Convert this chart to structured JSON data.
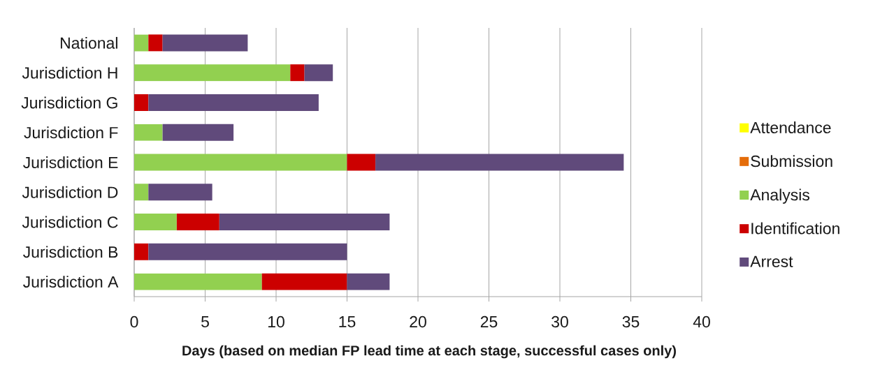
{
  "chart_data": {
    "type": "bar",
    "orientation": "horizontal",
    "stacked": true,
    "categories": [
      "National",
      "Jurisdiction H",
      "Jurisdiction G",
      "Jurisdiction F",
      "Jurisdiction E",
      "Jurisdiction D",
      "Jurisdiction C",
      "Jurisdiction B",
      "Jurisdiction A"
    ],
    "series": [
      {
        "name": "Attendance",
        "color": "#ffff00",
        "values": [
          0,
          0,
          0,
          0,
          0,
          0,
          0,
          0,
          0
        ]
      },
      {
        "name": "Submission",
        "color": "#e46c0a",
        "values": [
          0,
          0,
          0,
          0,
          0,
          0,
          0,
          0,
          0
        ]
      },
      {
        "name": "Analysis",
        "color": "#92d050",
        "values": [
          1,
          11,
          0,
          2,
          15,
          1,
          3,
          0,
          9
        ]
      },
      {
        "name": "Identification",
        "color": "#cc0000",
        "values": [
          1,
          1,
          1,
          0,
          2,
          0,
          3,
          1,
          6
        ]
      },
      {
        "name": "Arrest",
        "color": "#604a7b",
        "values": [
          6,
          2,
          12,
          5,
          17.5,
          4.5,
          12,
          14,
          3
        ]
      }
    ],
    "xlim": [
      0,
      40
    ],
    "xticks": [
      0,
      5,
      10,
      15,
      20,
      25,
      30,
      35,
      40
    ],
    "xlabel": "Days (based on median FP lead time at each stage, successful cases only)",
    "grid": "x",
    "legend": "right"
  }
}
